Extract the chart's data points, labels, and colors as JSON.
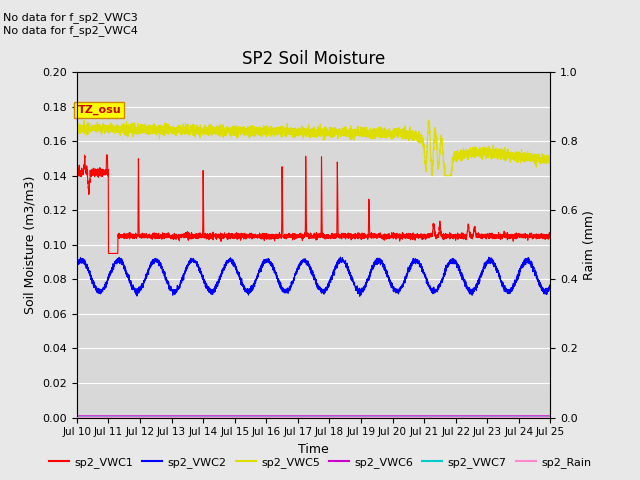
{
  "title": "SP2 Soil Moisture",
  "xlabel": "Time",
  "ylabel_left": "Soil Moisture (m3/m3)",
  "ylabel_right": "Raim (mm)",
  "no_data_text": [
    "No data for f_sp2_VWC3",
    "No data for f_sp2_VWC4"
  ],
  "tz_label": "TZ_osu",
  "ylim_left": [
    0.0,
    0.2
  ],
  "ylim_right": [
    0.0,
    1.0
  ],
  "yticks_left": [
    0.0,
    0.02,
    0.04,
    0.06,
    0.08,
    0.1,
    0.12,
    0.14,
    0.16,
    0.18,
    0.2
  ],
  "yticks_right": [
    0.0,
    0.2,
    0.4,
    0.6,
    0.8,
    1.0
  ],
  "xtick_labels": [
    "Jul 10",
    "Jul 11",
    "Jul 12",
    "Jul 13",
    "Jul 14",
    "Jul 15",
    "Jul 16",
    "Jul 17",
    "Jul 18",
    "Jul 19",
    "Jul 20",
    "Jul 21",
    "Jul 22",
    "Jul 23",
    "Jul 24",
    "Jul 25"
  ],
  "colors": {
    "vwc1": "#ff0000",
    "vwc2": "#0000ff",
    "vwc5": "#dddd00",
    "vwc6": "#cc00cc",
    "vwc7": "#00cccc",
    "rain": "#ff88cc",
    "fig_bg": "#e8e8e8",
    "plot_bg": "#d8d8d8",
    "grid": "#ffffff",
    "tz_bg": "#ffff00",
    "tz_border": "#cc8800",
    "tz_text": "#cc0000"
  },
  "legend_entries": [
    {
      "label": "sp2_VWC1",
      "color": "#ff0000"
    },
    {
      "label": "sp2_VWC2",
      "color": "#0000ff"
    },
    {
      "label": "sp2_VWC5",
      "color": "#dddd00"
    },
    {
      "label": "sp2_VWC6",
      "color": "#cc00cc"
    },
    {
      "label": "sp2_VWC7",
      "color": "#00cccc"
    },
    {
      "label": "sp2_Rain",
      "color": "#ff88cc"
    }
  ]
}
